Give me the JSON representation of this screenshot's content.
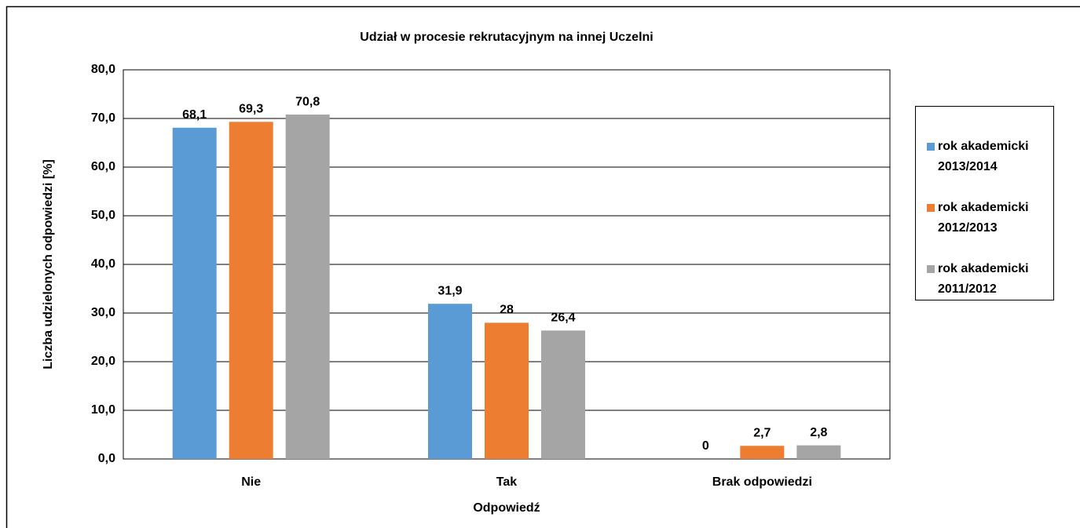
{
  "chart_data": {
    "type": "bar",
    "title": "Udział w procesie rekrutacyjnym na innej Uczelni",
    "x_label": "Odpowiedź",
    "y_label": "Liczba udzielonych odpowiedzi [%]",
    "categories": [
      "Nie",
      "Tak",
      "Brak odpowiedzi"
    ],
    "series": [
      {
        "name": "rok akademicki 2013/2014",
        "color": "#5b9bd5",
        "values": [
          68.1,
          31.9,
          0
        ],
        "value_labels": [
          "68,1",
          "31,9",
          "0"
        ]
      },
      {
        "name": "rok akademicki 2012/2013",
        "color": "#ed7d31",
        "values": [
          69.3,
          28,
          2.7
        ],
        "value_labels": [
          "69,3",
          "28",
          "2,7"
        ]
      },
      {
        "name": "rok akademicki 2011/2012",
        "color": "#a5a5a5",
        "values": [
          70.8,
          26.4,
          2.8
        ],
        "value_labels": [
          "70,8",
          "26,4",
          "2,8"
        ]
      }
    ],
    "ylim": [
      0,
      80
    ],
    "yticks": [
      {
        "value": 0,
        "label": "0,0"
      },
      {
        "value": 10,
        "label": "10,0"
      },
      {
        "value": 20,
        "label": "20,0"
      },
      {
        "value": 30,
        "label": "30,0"
      },
      {
        "value": 40,
        "label": "40,0"
      },
      {
        "value": 50,
        "label": "50,0"
      },
      {
        "value": 60,
        "label": "60,0"
      },
      {
        "value": 70,
        "label": "70,0"
      },
      {
        "value": 80,
        "label": "80,0"
      }
    ],
    "grid": true,
    "legend": "right"
  }
}
